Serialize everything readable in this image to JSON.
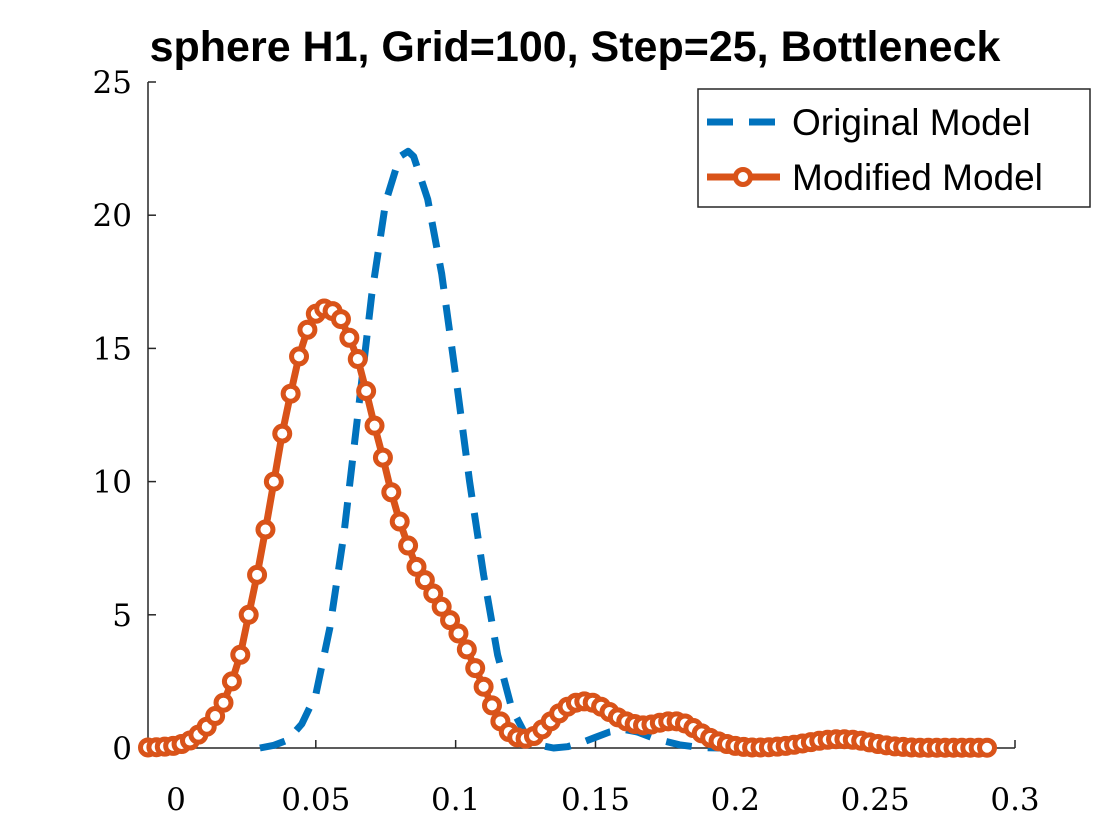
{
  "chart_data": {
    "type": "line",
    "title": "sphere H1, Grid=100, Step=25, Bottleneck",
    "xlabel": "",
    "ylabel": "",
    "xlim": [
      -0.01,
      0.3
    ],
    "ylim": [
      0,
      25
    ],
    "xticks": [
      "0",
      "0.05",
      "0.1",
      "0.15",
      "0.2",
      "0.25",
      "0.3"
    ],
    "yticks": [
      "0",
      "5",
      "10",
      "15",
      "20",
      "25"
    ],
    "grid": false,
    "legend_position": "top-right",
    "series": [
      {
        "name": "Original Model",
        "style": "dashed",
        "color": "#0072BD",
        "x": [
          0.03,
          0.035,
          0.04,
          0.045,
          0.05,
          0.055,
          0.06,
          0.065,
          0.07,
          0.075,
          0.08,
          0.083,
          0.085,
          0.09,
          0.095,
          0.1,
          0.105,
          0.11,
          0.115,
          0.12,
          0.125,
          0.13,
          0.135,
          0.14,
          0.145,
          0.15,
          0.155,
          0.16,
          0.165,
          0.17,
          0.175,
          0.18,
          0.185,
          0.19,
          0.195
        ],
        "y": [
          0,
          0.1,
          0.3,
          0.9,
          2,
          4.5,
          8,
          12.5,
          17,
          20.5,
          22.2,
          22.4,
          22.2,
          20.6,
          17.8,
          14,
          10,
          6.5,
          3.5,
          1.5,
          0.5,
          0.1,
          0,
          0.05,
          0.2,
          0.4,
          0.6,
          0.7,
          0.6,
          0.4,
          0.25,
          0.12,
          0.05,
          0.01,
          0
        ]
      },
      {
        "name": "Modified Model",
        "style": "solid-circle-markers",
        "color": "#D95319",
        "x": [
          -0.01,
          -0.007,
          -0.004,
          -0.001,
          0.002,
          0.005,
          0.008,
          0.011,
          0.014,
          0.017,
          0.02,
          0.023,
          0.026,
          0.029,
          0.032,
          0.035,
          0.038,
          0.041,
          0.044,
          0.047,
          0.05,
          0.053,
          0.056,
          0.059,
          0.062,
          0.065,
          0.068,
          0.071,
          0.074,
          0.077,
          0.08,
          0.083,
          0.086,
          0.089,
          0.092,
          0.095,
          0.098,
          0.101,
          0.104,
          0.107,
          0.11,
          0.113,
          0.116,
          0.119,
          0.122,
          0.125,
          0.128,
          0.131,
          0.134,
          0.137,
          0.14,
          0.143,
          0.146,
          0.149,
          0.152,
          0.155,
          0.158,
          0.161,
          0.164,
          0.167,
          0.17,
          0.173,
          0.176,
          0.179,
          0.182,
          0.185,
          0.188,
          0.191,
          0.194,
          0.197,
          0.2,
          0.203,
          0.206,
          0.209,
          0.212,
          0.215,
          0.218,
          0.221,
          0.224,
          0.227,
          0.23,
          0.233,
          0.236,
          0.239,
          0.242,
          0.245,
          0.248,
          0.251,
          0.254,
          0.257,
          0.26,
          0.263,
          0.266,
          0.269,
          0.272,
          0.275,
          0.278,
          0.281,
          0.284,
          0.287,
          0.29
        ],
        "y": [
          0.02,
          0.03,
          0.05,
          0.08,
          0.15,
          0.28,
          0.5,
          0.8,
          1.2,
          1.7,
          2.5,
          3.5,
          5,
          6.5,
          8.2,
          10,
          11.8,
          13.3,
          14.7,
          15.7,
          16.3,
          16.5,
          16.4,
          16.1,
          15.4,
          14.6,
          13.4,
          12.1,
          10.9,
          9.6,
          8.5,
          7.6,
          6.8,
          6.3,
          5.8,
          5.3,
          4.8,
          4.3,
          3.7,
          3,
          2.3,
          1.6,
          1,
          0.6,
          0.4,
          0.35,
          0.45,
          0.7,
          1,
          1.3,
          1.55,
          1.7,
          1.75,
          1.7,
          1.55,
          1.35,
          1.15,
          1,
          0.9,
          0.85,
          0.88,
          0.95,
          1,
          1,
          0.92,
          0.75,
          0.55,
          0.38,
          0.25,
          0.15,
          0.08,
          0.04,
          0.02,
          0.02,
          0.03,
          0.05,
          0.08,
          0.12,
          0.17,
          0.22,
          0.27,
          0.31,
          0.33,
          0.33,
          0.31,
          0.27,
          0.21,
          0.15,
          0.1,
          0.06,
          0.04,
          0.02,
          0.01,
          0.01,
          0.01,
          0.01,
          0.01,
          0.01,
          0.01,
          0.01,
          0.01
        ]
      }
    ]
  }
}
